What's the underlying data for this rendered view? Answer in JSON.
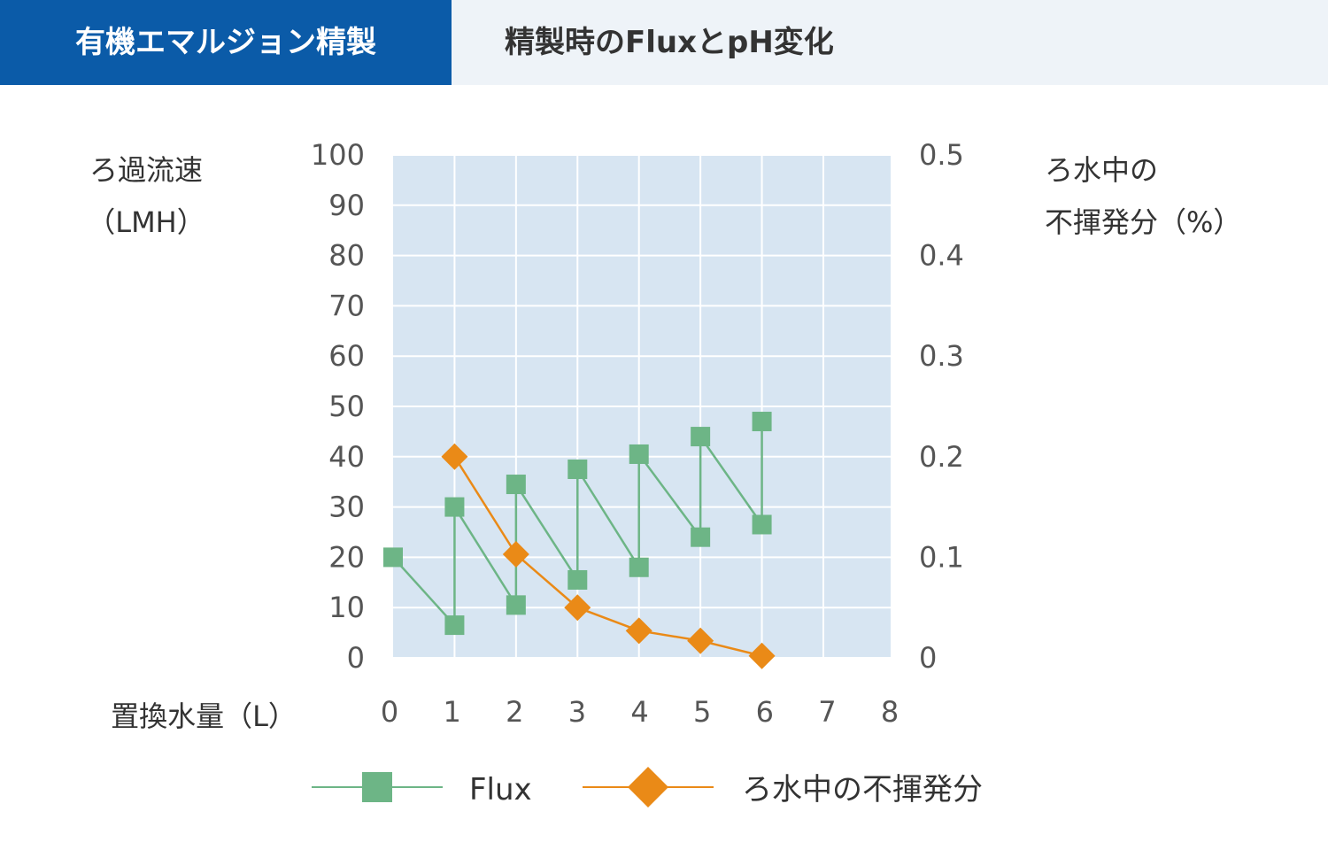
{
  "tabs": [
    {
      "label": "有機エマルジョン精製",
      "active": true
    },
    {
      "label": "精製時のFluxとpH変化",
      "active": false
    }
  ],
  "colors": {
    "tab_active_bg": "#0b5ba8",
    "tab_bar_bg": "#eef3f8",
    "plot_bg": "#d7e5f2",
    "grid": "#ffffff",
    "flux": "#6db586",
    "nonvolatile": "#ea8a17"
  },
  "chart_data": {
    "type": "line",
    "ylabel_left": [
      "ろ過流速",
      "（LMH）"
    ],
    "ylabel_right": [
      "ろ水中の",
      "不揮発分（%）"
    ],
    "xlabel": "置換水量（L）",
    "xlim": [
      0,
      7
    ],
    "ylim_left": [
      0,
      100
    ],
    "ylim_right": [
      0,
      0.5
    ],
    "x_ticks": [
      "0",
      "1",
      "2",
      "3",
      "4",
      "5",
      "6",
      "7",
      "8"
    ],
    "y_left_ticks": [
      "0",
      "10",
      "20",
      "30",
      "40",
      "50",
      "60",
      "70",
      "80",
      "90",
      "100"
    ],
    "y_right_ticks": [
      "0",
      "0.1",
      "0.2",
      "0.3",
      "0.4",
      "0.5"
    ],
    "grid": true,
    "legend_position": "bottom",
    "series": [
      {
        "name": "Flux",
        "axis": "left",
        "marker": "square",
        "x": [
          0,
          1,
          1,
          2,
          2,
          3,
          3,
          4,
          4,
          5,
          5,
          6,
          6
        ],
        "y": [
          20,
          6.5,
          30,
          10.5,
          34.5,
          15.5,
          37.5,
          18,
          40.5,
          24,
          44,
          26.5,
          47
        ]
      },
      {
        "name": "ろ水中の不揮発分",
        "axis": "right",
        "marker": "diamond",
        "x": [
          1,
          2,
          3,
          4,
          5,
          6
        ],
        "y": [
          0.2,
          0.103,
          0.05,
          0.027,
          0.017,
          0.002
        ]
      }
    ]
  }
}
